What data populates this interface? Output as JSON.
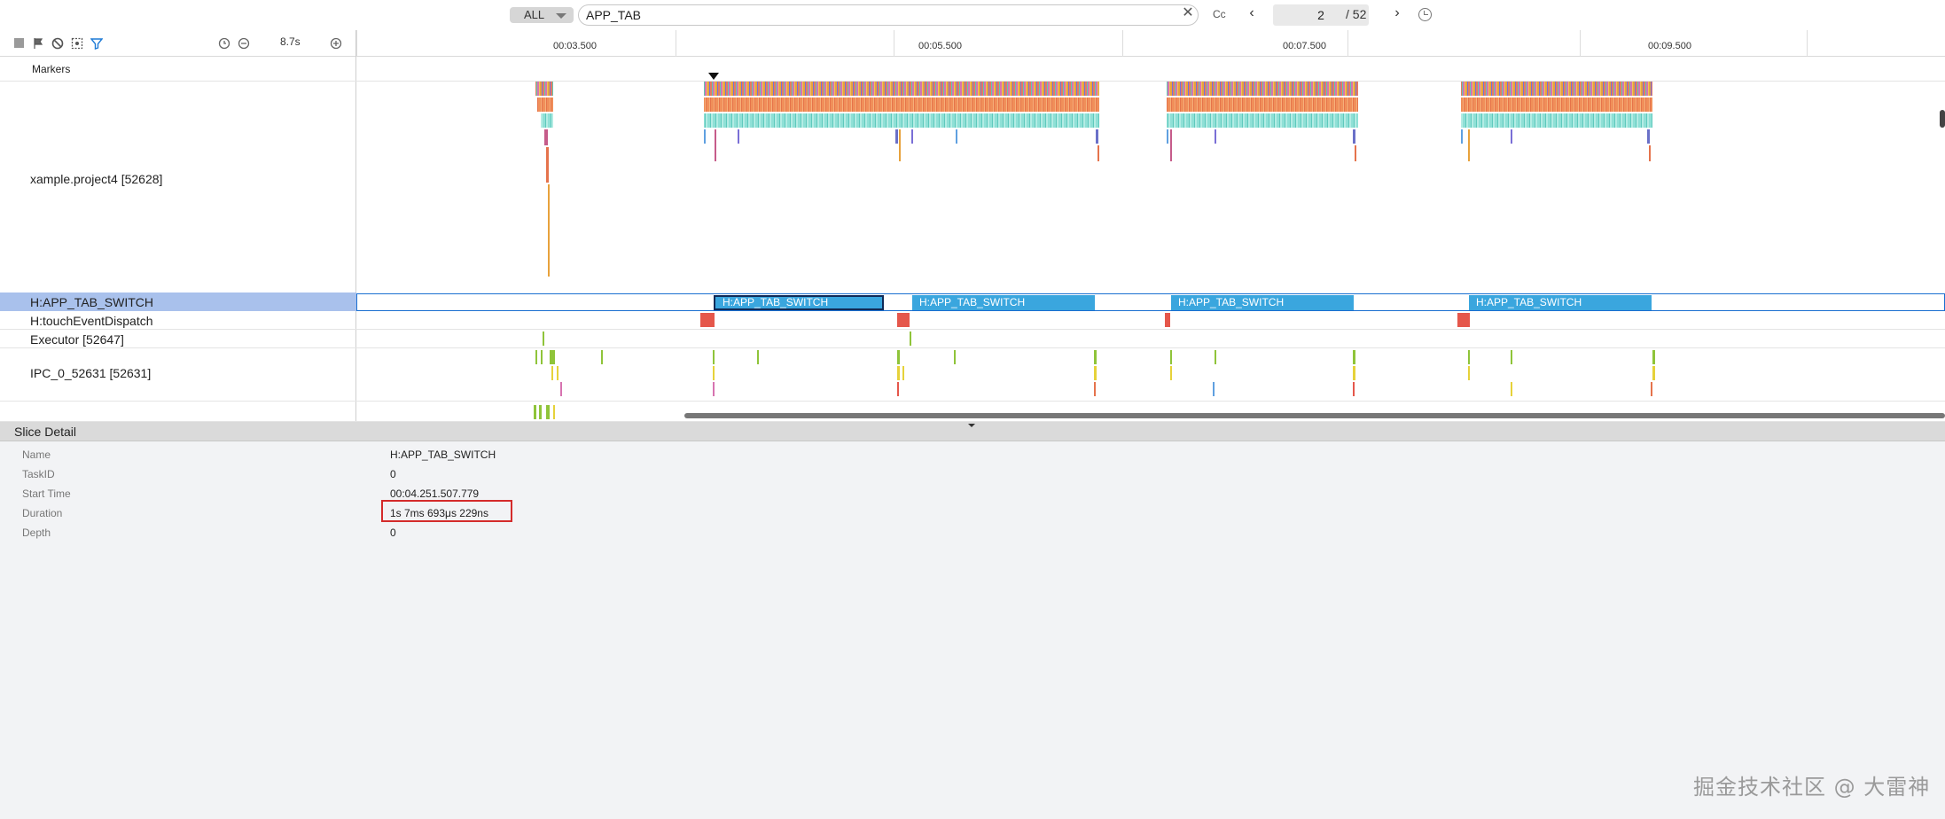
{
  "search": {
    "filter_label": "ALL",
    "query": "APP_TAB",
    "clear_icon": "close-icon",
    "case_label": "Cc",
    "prev_icon": "chevron-left-icon",
    "current_page": "2",
    "total_pages": "/ 52",
    "next_icon": "chevron-right-icon",
    "history_icon": "clock-icon"
  },
  "toolbar": {
    "zoom": "8.7s",
    "ticks": [
      "00:03.500",
      "00:05.500",
      "00:07.500",
      "00:09.500"
    ]
  },
  "rows": {
    "markers": "Markers",
    "process": "xample.project4 [52628]",
    "task": "H:APP_TAB_SWITCH",
    "touch": "H:touchEventDispatch",
    "executor": "Executor [52647]",
    "ipc": "IPC_0_52631 [52631]"
  },
  "task_slices": [
    "H:APP_TAB_SWITCH",
    "H:APP_TAB_SWITCH",
    "H:APP_TAB_SWITCH",
    "H:APP_TAB_SWITCH"
  ],
  "detail": {
    "title": "Slice Detail",
    "keys": [
      "Name",
      "TaskID",
      "Start Time",
      "Duration",
      "Depth"
    ],
    "values": [
      "H:APP_TAB_SWITCH",
      "0",
      "00:04.251.507.779",
      "1s 7ms 693μs 229ns",
      "0"
    ]
  },
  "watermark": "掘金技术社区 @ 大雷神",
  "colors": {
    "slice_blue": "#3aa6de",
    "selected_row": "#a9c1ec",
    "highlight_red": "#d42b2b",
    "track_border": "#1a6fd0"
  }
}
